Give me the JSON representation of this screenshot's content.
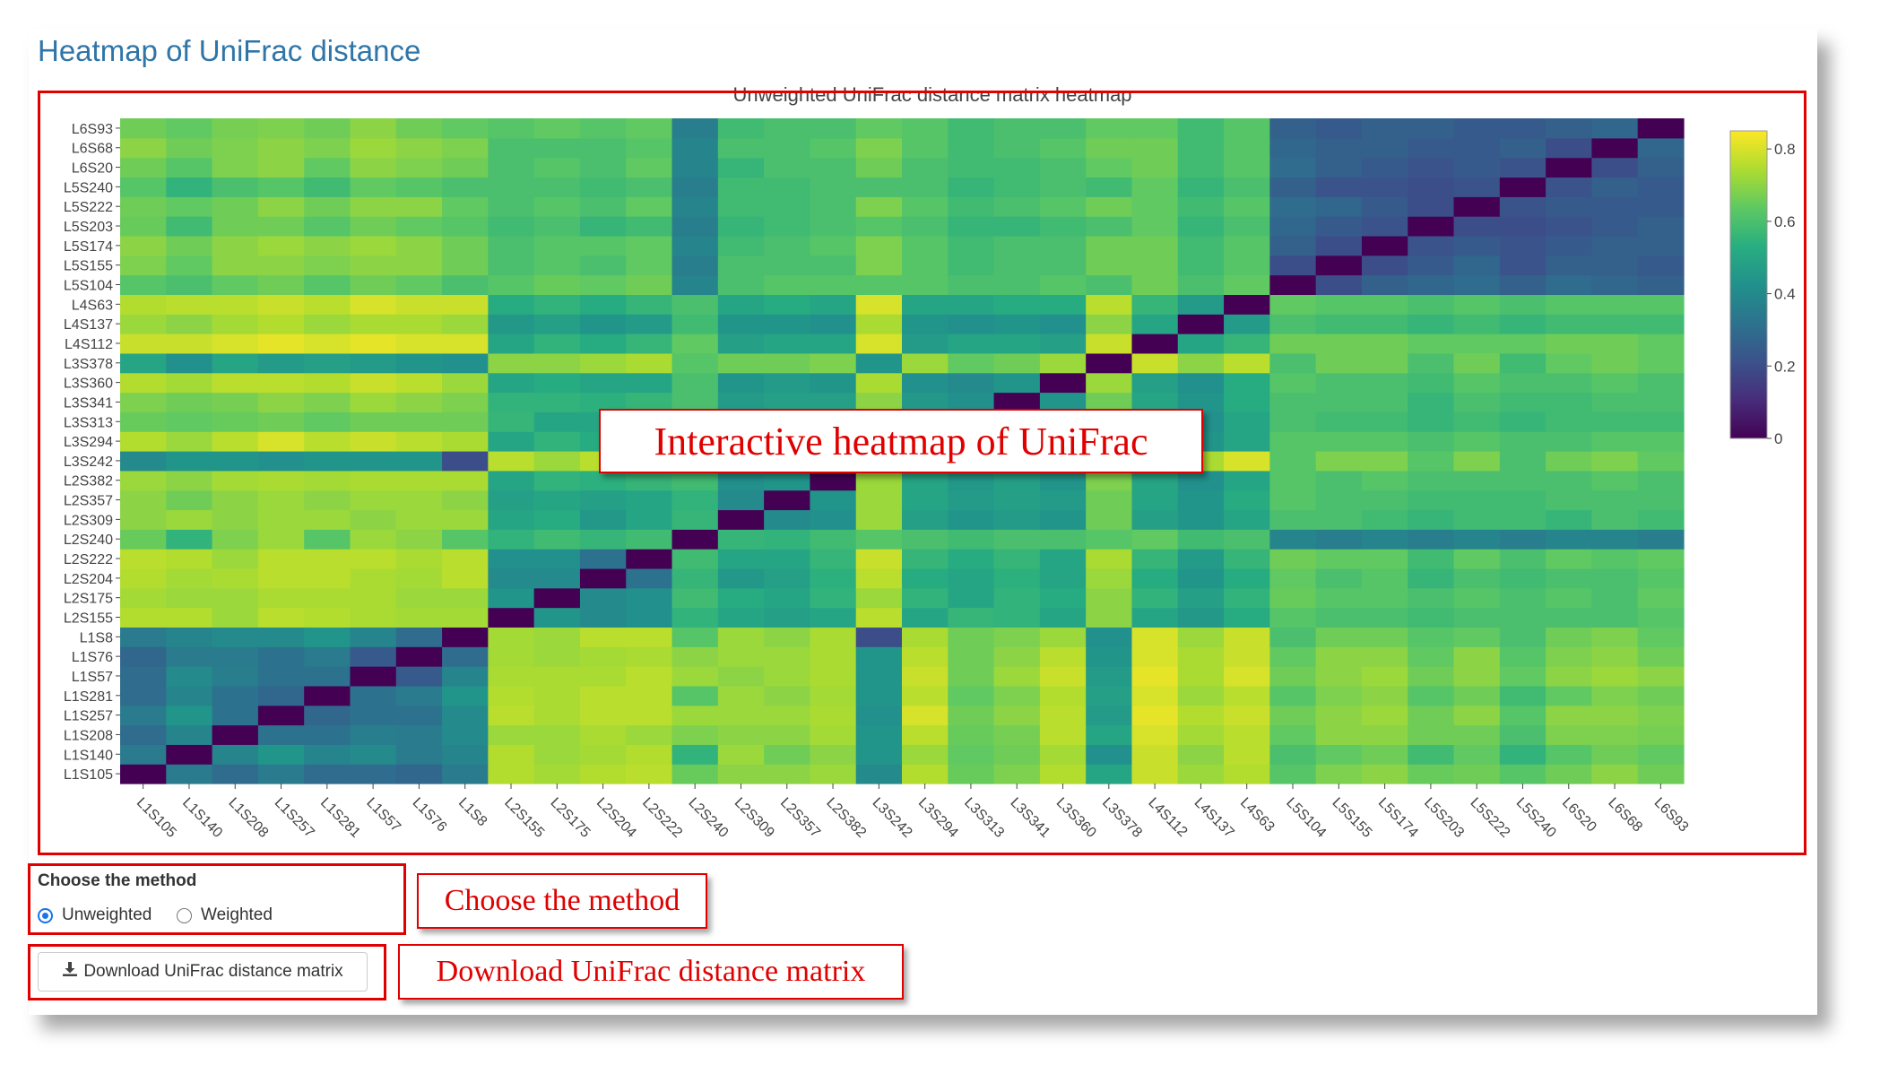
{
  "page": {
    "title": "Heatmap of UniFrac distance"
  },
  "controls": {
    "method_label": "Choose the method",
    "options": [
      {
        "label": "Unweighted",
        "checked": true
      },
      {
        "label": "Weighted",
        "checked": false
      }
    ],
    "download_label": "Download UniFrac distance matrix",
    "download_icon": "download-icon"
  },
  "annotations": {
    "heatmap": "Interactive heatmap of UniFrac",
    "method": "Choose the method",
    "download": "Download UniFrac distance matrix"
  },
  "colors": {
    "accent": "#e00000",
    "title": "#2f75a8",
    "radio": "#1a73e8"
  },
  "chart_data": {
    "type": "heatmap",
    "title": "Unweighted UniFrac distance matrix heatmap",
    "colorscale": "viridis",
    "zlim": [
      0,
      0.85
    ],
    "colorbar_ticks": [
      0,
      0.2,
      0.4,
      0.6,
      0.8
    ],
    "x": [
      "L1S105",
      "L1S140",
      "L1S208",
      "L1S257",
      "L1S281",
      "L1S57",
      "L1S76",
      "L1S8",
      "L2S155",
      "L2S175",
      "L2S204",
      "L2S222",
      "L2S240",
      "L2S309",
      "L2S357",
      "L2S382",
      "L3S242",
      "L3S294",
      "L3S313",
      "L3S341",
      "L3S360",
      "L3S378",
      "L4S112",
      "L4S137",
      "L4S63",
      "L5S104",
      "L5S155",
      "L5S174",
      "L5S203",
      "L5S222",
      "L5S240",
      "L6S20",
      "L6S68",
      "L6S93"
    ],
    "y": [
      "L1S105",
      "L1S140",
      "L1S208",
      "L1S257",
      "L1S281",
      "L1S57",
      "L1S76",
      "L1S8",
      "L2S155",
      "L2S175",
      "L2S204",
      "L2S222",
      "L2S240",
      "L2S309",
      "L2S357",
      "L2S382",
      "L3S242",
      "L3S294",
      "L3S313",
      "L3S341",
      "L3S360",
      "L3S378",
      "L4S112",
      "L4S137",
      "L4S63",
      "L5S104",
      "L5S155",
      "L5S174",
      "L5S203",
      "L5S222",
      "L5S240",
      "L6S20",
      "L6S68",
      "L6S93"
    ],
    "z": [
      [
        0,
        0.35,
        0.3,
        0.35,
        0.3,
        0.3,
        0.28,
        0.35,
        0.75,
        0.73,
        0.75,
        0.76,
        0.65,
        0.7,
        0.7,
        0.72,
        0.4,
        0.75,
        0.65,
        0.68,
        0.75,
        0.5,
        0.78,
        0.72,
        0.75,
        0.62,
        0.68,
        0.7,
        0.65,
        0.66,
        0.62,
        0.66,
        0.7,
        0.66
      ],
      [
        0.35,
        0,
        0.38,
        0.44,
        0.38,
        0.4,
        0.35,
        0.38,
        0.75,
        0.72,
        0.73,
        0.75,
        0.55,
        0.72,
        0.66,
        0.7,
        0.44,
        0.72,
        0.64,
        0.66,
        0.73,
        0.42,
        0.78,
        0.7,
        0.76,
        0.6,
        0.64,
        0.66,
        0.58,
        0.64,
        0.55,
        0.62,
        0.66,
        0.64
      ],
      [
        0.3,
        0.38,
        0,
        0.32,
        0.32,
        0.36,
        0.35,
        0.4,
        0.72,
        0.72,
        0.74,
        0.72,
        0.68,
        0.7,
        0.7,
        0.73,
        0.44,
        0.76,
        0.65,
        0.67,
        0.76,
        0.5,
        0.8,
        0.73,
        0.76,
        0.64,
        0.7,
        0.7,
        0.66,
        0.66,
        0.6,
        0.68,
        0.68,
        0.67
      ],
      [
        0.35,
        0.44,
        0.32,
        0,
        0.28,
        0.32,
        0.32,
        0.4,
        0.76,
        0.74,
        0.76,
        0.76,
        0.72,
        0.72,
        0.72,
        0.74,
        0.42,
        0.8,
        0.66,
        0.7,
        0.76,
        0.46,
        0.82,
        0.75,
        0.78,
        0.66,
        0.7,
        0.72,
        0.66,
        0.7,
        0.62,
        0.7,
        0.7,
        0.68
      ],
      [
        0.3,
        0.38,
        0.32,
        0.28,
        0,
        0.32,
        0.35,
        0.44,
        0.75,
        0.74,
        0.76,
        0.76,
        0.62,
        0.72,
        0.7,
        0.73,
        0.44,
        0.76,
        0.64,
        0.68,
        0.75,
        0.48,
        0.8,
        0.72,
        0.76,
        0.62,
        0.68,
        0.7,
        0.62,
        0.66,
        0.58,
        0.64,
        0.68,
        0.66
      ],
      [
        0.3,
        0.4,
        0.36,
        0.32,
        0.32,
        0,
        0.24,
        0.38,
        0.74,
        0.74,
        0.74,
        0.76,
        0.72,
        0.7,
        0.72,
        0.74,
        0.44,
        0.78,
        0.66,
        0.72,
        0.78,
        0.46,
        0.82,
        0.74,
        0.8,
        0.66,
        0.7,
        0.72,
        0.66,
        0.7,
        0.64,
        0.7,
        0.72,
        0.7
      ],
      [
        0.28,
        0.35,
        0.35,
        0.32,
        0.35,
        0.24,
        0,
        0.3,
        0.73,
        0.72,
        0.73,
        0.74,
        0.7,
        0.72,
        0.72,
        0.74,
        0.44,
        0.76,
        0.66,
        0.7,
        0.76,
        0.44,
        0.8,
        0.74,
        0.78,
        0.64,
        0.7,
        0.7,
        0.64,
        0.7,
        0.62,
        0.68,
        0.7,
        0.66
      ],
      [
        0.35,
        0.38,
        0.4,
        0.4,
        0.44,
        0.38,
        0.3,
        0,
        0.73,
        0.72,
        0.76,
        0.76,
        0.62,
        0.72,
        0.7,
        0.74,
        0.2,
        0.74,
        0.66,
        0.68,
        0.72,
        0.42,
        0.8,
        0.72,
        0.78,
        0.6,
        0.66,
        0.66,
        0.62,
        0.64,
        0.6,
        0.66,
        0.68,
        0.64
      ],
      [
        0.75,
        0.75,
        0.72,
        0.76,
        0.75,
        0.74,
        0.73,
        0.73,
        0,
        0.44,
        0.4,
        0.42,
        0.55,
        0.5,
        0.48,
        0.5,
        0.76,
        0.5,
        0.56,
        0.55,
        0.5,
        0.7,
        0.5,
        0.45,
        0.52,
        0.62,
        0.6,
        0.6,
        0.58,
        0.6,
        0.6,
        0.6,
        0.6,
        0.62
      ],
      [
        0.73,
        0.72,
        0.72,
        0.74,
        0.74,
        0.74,
        0.72,
        0.72,
        0.44,
        0,
        0.4,
        0.42,
        0.58,
        0.52,
        0.5,
        0.55,
        0.72,
        0.55,
        0.5,
        0.55,
        0.52,
        0.7,
        0.55,
        0.48,
        0.55,
        0.65,
        0.62,
        0.62,
        0.6,
        0.62,
        0.6,
        0.62,
        0.6,
        0.64
      ],
      [
        0.75,
        0.73,
        0.74,
        0.76,
        0.76,
        0.74,
        0.73,
        0.76,
        0.4,
        0.4,
        0,
        0.32,
        0.56,
        0.45,
        0.48,
        0.54,
        0.76,
        0.52,
        0.5,
        0.54,
        0.5,
        0.72,
        0.52,
        0.44,
        0.52,
        0.64,
        0.6,
        0.62,
        0.56,
        0.6,
        0.58,
        0.6,
        0.6,
        0.62
      ],
      [
        0.76,
        0.75,
        0.72,
        0.76,
        0.76,
        0.76,
        0.74,
        0.76,
        0.42,
        0.42,
        0.32,
        0,
        0.58,
        0.5,
        0.5,
        0.56,
        0.78,
        0.56,
        0.52,
        0.56,
        0.5,
        0.74,
        0.56,
        0.46,
        0.56,
        0.66,
        0.64,
        0.64,
        0.58,
        0.64,
        0.6,
        0.64,
        0.62,
        0.64
      ],
      [
        0.65,
        0.55,
        0.68,
        0.72,
        0.62,
        0.72,
        0.7,
        0.62,
        0.55,
        0.58,
        0.56,
        0.58,
        0,
        0.56,
        0.55,
        0.58,
        0.62,
        0.6,
        0.58,
        0.6,
        0.6,
        0.62,
        0.64,
        0.58,
        0.6,
        0.38,
        0.36,
        0.38,
        0.36,
        0.38,
        0.36,
        0.38,
        0.38,
        0.36
      ],
      [
        0.7,
        0.72,
        0.7,
        0.72,
        0.72,
        0.7,
        0.72,
        0.72,
        0.5,
        0.52,
        0.45,
        0.5,
        0.56,
        0,
        0.4,
        0.42,
        0.72,
        0.48,
        0.44,
        0.46,
        0.44,
        0.66,
        0.48,
        0.44,
        0.5,
        0.6,
        0.6,
        0.58,
        0.56,
        0.58,
        0.58,
        0.56,
        0.6,
        0.58
      ],
      [
        0.7,
        0.66,
        0.7,
        0.72,
        0.7,
        0.72,
        0.72,
        0.7,
        0.48,
        0.5,
        0.48,
        0.5,
        0.55,
        0.4,
        0,
        0.44,
        0.72,
        0.5,
        0.46,
        0.48,
        0.46,
        0.66,
        0.5,
        0.44,
        0.52,
        0.62,
        0.6,
        0.6,
        0.58,
        0.58,
        0.58,
        0.6,
        0.6,
        0.6
      ],
      [
        0.72,
        0.7,
        0.73,
        0.74,
        0.73,
        0.74,
        0.74,
        0.74,
        0.5,
        0.55,
        0.54,
        0.56,
        0.58,
        0.42,
        0.44,
        0,
        0.72,
        0.5,
        0.45,
        0.48,
        0.44,
        0.68,
        0.5,
        0.42,
        0.5,
        0.62,
        0.6,
        0.62,
        0.6,
        0.6,
        0.6,
        0.6,
        0.62,
        0.6
      ],
      [
        0.4,
        0.44,
        0.44,
        0.42,
        0.44,
        0.44,
        0.44,
        0.2,
        0.76,
        0.72,
        0.76,
        0.78,
        0.62,
        0.72,
        0.72,
        0.72,
        0,
        0.74,
        0.66,
        0.7,
        0.74,
        0.44,
        0.8,
        0.74,
        0.8,
        0.62,
        0.68,
        0.68,
        0.62,
        0.68,
        0.6,
        0.66,
        0.68,
        0.64
      ],
      [
        0.75,
        0.72,
        0.76,
        0.8,
        0.76,
        0.78,
        0.76,
        0.74,
        0.5,
        0.55,
        0.52,
        0.56,
        0.6,
        0.48,
        0.5,
        0.5,
        0.74,
        0,
        0.42,
        0.45,
        0.42,
        0.72,
        0.46,
        0.44,
        0.5,
        0.62,
        0.62,
        0.62,
        0.6,
        0.62,
        0.6,
        0.6,
        0.62,
        0.62
      ],
      [
        0.65,
        0.64,
        0.65,
        0.66,
        0.64,
        0.66,
        0.66,
        0.66,
        0.56,
        0.5,
        0.5,
        0.52,
        0.58,
        0.44,
        0.46,
        0.45,
        0.66,
        0.42,
        0,
        0.42,
        0.4,
        0.64,
        0.5,
        0.42,
        0.5,
        0.6,
        0.58,
        0.58,
        0.56,
        0.58,
        0.56,
        0.58,
        0.58,
        0.58
      ],
      [
        0.68,
        0.66,
        0.67,
        0.7,
        0.68,
        0.72,
        0.7,
        0.68,
        0.55,
        0.55,
        0.54,
        0.56,
        0.6,
        0.46,
        0.48,
        0.48,
        0.7,
        0.45,
        0.42,
        0,
        0.44,
        0.66,
        0.5,
        0.44,
        0.52,
        0.6,
        0.6,
        0.6,
        0.56,
        0.6,
        0.58,
        0.58,
        0.6,
        0.6
      ],
      [
        0.75,
        0.73,
        0.76,
        0.76,
        0.75,
        0.78,
        0.76,
        0.72,
        0.5,
        0.52,
        0.5,
        0.5,
        0.6,
        0.44,
        0.46,
        0.44,
        0.74,
        0.42,
        0.4,
        0.44,
        0,
        0.72,
        0.48,
        0.42,
        0.52,
        0.62,
        0.6,
        0.6,
        0.58,
        0.62,
        0.6,
        0.6,
        0.62,
        0.6
      ],
      [
        0.5,
        0.42,
        0.5,
        0.46,
        0.48,
        0.46,
        0.44,
        0.42,
        0.7,
        0.7,
        0.72,
        0.74,
        0.62,
        0.66,
        0.66,
        0.68,
        0.44,
        0.72,
        0.64,
        0.66,
        0.72,
        0,
        0.78,
        0.7,
        0.76,
        0.6,
        0.66,
        0.66,
        0.6,
        0.66,
        0.58,
        0.64,
        0.66,
        0.64
      ],
      [
        0.78,
        0.78,
        0.8,
        0.82,
        0.8,
        0.82,
        0.8,
        0.8,
        0.5,
        0.55,
        0.52,
        0.56,
        0.64,
        0.48,
        0.5,
        0.5,
        0.8,
        0.46,
        0.5,
        0.5,
        0.48,
        0.78,
        0,
        0.5,
        0.56,
        0.66,
        0.66,
        0.66,
        0.64,
        0.64,
        0.64,
        0.66,
        0.66,
        0.64
      ],
      [
        0.72,
        0.7,
        0.73,
        0.75,
        0.72,
        0.74,
        0.74,
        0.72,
        0.45,
        0.48,
        0.44,
        0.46,
        0.58,
        0.44,
        0.44,
        0.42,
        0.74,
        0.44,
        0.42,
        0.44,
        0.42,
        0.7,
        0.5,
        0,
        0.46,
        0.6,
        0.58,
        0.58,
        0.56,
        0.58,
        0.56,
        0.58,
        0.58,
        0.58
      ],
      [
        0.75,
        0.76,
        0.76,
        0.78,
        0.76,
        0.8,
        0.78,
        0.78,
        0.52,
        0.55,
        0.52,
        0.56,
        0.6,
        0.5,
        0.52,
        0.5,
        0.8,
        0.5,
        0.5,
        0.52,
        0.52,
        0.76,
        0.56,
        0.46,
        0,
        0.64,
        0.62,
        0.62,
        0.6,
        0.62,
        0.6,
        0.62,
        0.62,
        0.62
      ],
      [
        0.62,
        0.6,
        0.64,
        0.66,
        0.62,
        0.66,
        0.64,
        0.6,
        0.62,
        0.65,
        0.64,
        0.66,
        0.38,
        0.6,
        0.62,
        0.62,
        0.62,
        0.62,
        0.6,
        0.6,
        0.62,
        0.6,
        0.66,
        0.6,
        0.64,
        0,
        0.2,
        0.26,
        0.28,
        0.3,
        0.26,
        0.3,
        0.28,
        0.26
      ],
      [
        0.68,
        0.64,
        0.7,
        0.7,
        0.68,
        0.7,
        0.7,
        0.66,
        0.6,
        0.62,
        0.6,
        0.64,
        0.36,
        0.6,
        0.6,
        0.6,
        0.68,
        0.62,
        0.58,
        0.6,
        0.6,
        0.66,
        0.66,
        0.58,
        0.62,
        0.2,
        0,
        0.2,
        0.24,
        0.28,
        0.22,
        0.26,
        0.26,
        0.24
      ],
      [
        0.7,
        0.66,
        0.7,
        0.72,
        0.7,
        0.72,
        0.7,
        0.66,
        0.6,
        0.62,
        0.62,
        0.64,
        0.38,
        0.58,
        0.6,
        0.62,
        0.68,
        0.62,
        0.58,
        0.6,
        0.6,
        0.66,
        0.66,
        0.58,
        0.62,
        0.26,
        0.2,
        0,
        0.22,
        0.24,
        0.22,
        0.24,
        0.26,
        0.26
      ],
      [
        0.65,
        0.58,
        0.66,
        0.66,
        0.62,
        0.66,
        0.64,
        0.62,
        0.58,
        0.6,
        0.56,
        0.58,
        0.36,
        0.56,
        0.58,
        0.6,
        0.62,
        0.6,
        0.56,
        0.56,
        0.58,
        0.6,
        0.64,
        0.56,
        0.6,
        0.28,
        0.24,
        0.22,
        0,
        0.2,
        0.2,
        0.22,
        0.24,
        0.26
      ],
      [
        0.66,
        0.64,
        0.66,
        0.7,
        0.66,
        0.7,
        0.7,
        0.64,
        0.6,
        0.62,
        0.6,
        0.64,
        0.38,
        0.58,
        0.58,
        0.6,
        0.68,
        0.62,
        0.58,
        0.6,
        0.62,
        0.66,
        0.64,
        0.58,
        0.62,
        0.3,
        0.28,
        0.24,
        0.2,
        0,
        0.22,
        0.24,
        0.24,
        0.24
      ],
      [
        0.62,
        0.55,
        0.6,
        0.62,
        0.58,
        0.64,
        0.62,
        0.6,
        0.6,
        0.6,
        0.58,
        0.6,
        0.36,
        0.58,
        0.58,
        0.6,
        0.6,
        0.6,
        0.56,
        0.58,
        0.6,
        0.58,
        0.64,
        0.56,
        0.6,
        0.26,
        0.22,
        0.22,
        0.2,
        0.22,
        0,
        0.22,
        0.26,
        0.24
      ],
      [
        0.66,
        0.62,
        0.68,
        0.7,
        0.64,
        0.7,
        0.68,
        0.66,
        0.6,
        0.62,
        0.6,
        0.64,
        0.38,
        0.56,
        0.6,
        0.6,
        0.66,
        0.6,
        0.58,
        0.58,
        0.6,
        0.64,
        0.66,
        0.58,
        0.62,
        0.3,
        0.26,
        0.24,
        0.22,
        0.24,
        0.22,
        0,
        0.2,
        0.26
      ],
      [
        0.7,
        0.66,
        0.68,
        0.7,
        0.68,
        0.72,
        0.7,
        0.68,
        0.6,
        0.6,
        0.6,
        0.62,
        0.38,
        0.6,
        0.6,
        0.62,
        0.68,
        0.62,
        0.58,
        0.6,
        0.62,
        0.66,
        0.66,
        0.58,
        0.62,
        0.28,
        0.26,
        0.26,
        0.24,
        0.24,
        0.26,
        0.2,
        0,
        0.28
      ],
      [
        0.66,
        0.64,
        0.67,
        0.68,
        0.66,
        0.7,
        0.66,
        0.64,
        0.62,
        0.64,
        0.62,
        0.64,
        0.36,
        0.58,
        0.6,
        0.6,
        0.64,
        0.62,
        0.58,
        0.6,
        0.6,
        0.64,
        0.64,
        0.58,
        0.62,
        0.26,
        0.24,
        0.26,
        0.26,
        0.24,
        0.24,
        0.26,
        0.28,
        0
      ]
    ]
  }
}
